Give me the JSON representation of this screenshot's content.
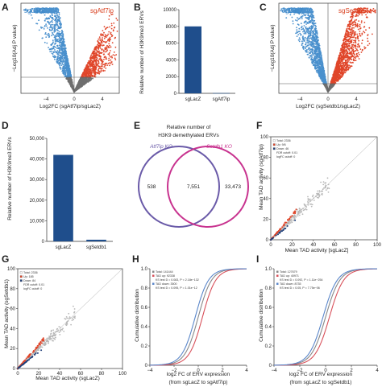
{
  "colors": {
    "blue": "#4a90cd",
    "red": "#e0462a",
    "grey": "#6f6f6f",
    "bar_blue": "#1f4e8c",
    "venn_purple": "#6a5aa8",
    "venn_magenta": "#c8338f",
    "ecdf_blue": "#5a86c9",
    "ecdf_red": "#d8505a"
  },
  "panels": {
    "A": {
      "letter": "A",
      "left_label": "sgLacZ",
      "right_label": "sgAtf7ip",
      "ylabel": "−Log10(Adj P value)",
      "xlabel": "Log2FC (sgAtf7ip/sgLacZ)",
      "xticks": [
        "−4",
        "0",
        "4"
      ]
    },
    "B": {
      "letter": "B",
      "ylabel": "Relative number of H3K9me3 ERVs"
    },
    "C": {
      "letter": "C",
      "left_label": "sgLacZ",
      "right_label": "sgSetdb1",
      "ylabel": "−Log10(Adj P value)",
      "xlabel": "Log2FC (sgSetdb1/sgLacZ)",
      "xticks": [
        "−4",
        "0",
        "4"
      ]
    },
    "D": {
      "letter": "D",
      "ylabel": "Relative number of H3K9me3 ERVs"
    },
    "E": {
      "letter": "E",
      "title_line1": "Relative number of",
      "title_line2": "H3K9 demethylated ERVs",
      "left_set": "Atf7ip KO",
      "right_set": "Setdb1 KO",
      "left_only": "538",
      "overlap": "7,551",
      "right_only": "33,473"
    },
    "F": {
      "letter": "F",
      "xlabel": "Mean TAD activity [sgLacZ]",
      "ylabel": "Mean TAD activity (sgAtf7ip)",
      "legend": [
        "Total: 2336",
        "Up: 9/6",
        "Down: 46",
        "FDR cutoff: 0.01",
        "logFC cutoff: 0"
      ]
    },
    "G": {
      "letter": "G",
      "xlabel": "Mean TAD activity (sgLacZ)",
      "ylabel": "Mean TAD activity (sgSetdb1)",
      "legend": [
        "Total: 2336",
        "Up: 185",
        "Down: 84",
        "FDR cutoff: 0.01",
        "logFC cutoff: 0"
      ]
    },
    "H": {
      "letter": "H",
      "ylabel": "Cumulative distribution",
      "xlabel_line1": "log2 FC of ERV expression",
      "xlabel_line2": "(from sgLacZ to sgAtf7ip)",
      "legend": [
        "Total: 141444",
        "TAD up: 92338",
        "KS test D = 0.083, P < 2.18e−132",
        "TAD down: 3500",
        "KS test D = 0.095, P = 1.01e−12"
      ]
    },
    "I": {
      "letter": "I",
      "ylabel": "Cumulative distribution",
      "xlabel_line1": "log2 FC of ERV expression",
      "xlabel_line2": "(from sgLacZ to sgSetdb1)",
      "legend": [
        "Total: 127679",
        "TAD up: 40971",
        "KS test D = 0.092, P = 1.11e−254",
        "TAD down: 8735",
        "KS test D = 0.05, P = 7.75e−06"
      ]
    }
  },
  "chart_data": [
    {
      "panel": "B",
      "type": "bar",
      "categories": [
        "sgLacZ",
        "sgAtf7ip"
      ],
      "values": [
        8000,
        30
      ],
      "ylim": [
        0,
        10000
      ],
      "yticks": [
        "0",
        "2000",
        "4000",
        "6000",
        "8000",
        "10000"
      ]
    },
    {
      "panel": "D",
      "type": "bar",
      "categories": [
        "sgLacZ",
        "sgSetdb1"
      ],
      "values": [
        42000,
        800
      ],
      "ylim": [
        0,
        50000
      ],
      "yticks": [
        "0",
        "10,000",
        "20,000",
        "30,000",
        "40,000",
        "50,000"
      ]
    },
    {
      "panel": "F",
      "type": "scatter",
      "xlim": [
        0,
        100
      ],
      "ylim": [
        0,
        100
      ],
      "xticks": [
        "0",
        "20",
        "40",
        "60",
        "80",
        "100"
      ],
      "yticks": [
        "0",
        "20",
        "40",
        "60",
        "80",
        "100"
      ]
    },
    {
      "panel": "G",
      "type": "scatter",
      "xlim": [
        0,
        100
      ],
      "ylim": [
        0,
        100
      ],
      "xticks": [
        "0",
        "20",
        "40",
        "60",
        "80",
        "100"
      ],
      "yticks": [
        "0",
        "20",
        "40",
        "60",
        "80",
        "100"
      ]
    },
    {
      "panel": "H",
      "type": "line",
      "xlim": [
        -4,
        4
      ],
      "ylim": [
        0,
        1.0
      ],
      "xticks": [
        "−4",
        "−2",
        "0",
        "2",
        "4"
      ],
      "yticks": [
        "0",
        "0.2",
        "0.4",
        "0.6",
        "0.8",
        "1.0"
      ]
    },
    {
      "panel": "I",
      "type": "line",
      "xlim": [
        -4,
        4
      ],
      "ylim": [
        0,
        1.0
      ],
      "xticks": [
        "−4",
        "−2",
        "0",
        "2",
        "4"
      ],
      "yticks": [
        "0",
        "0.2",
        "0.4",
        "0.6",
        "0.8",
        "1.0"
      ]
    }
  ]
}
